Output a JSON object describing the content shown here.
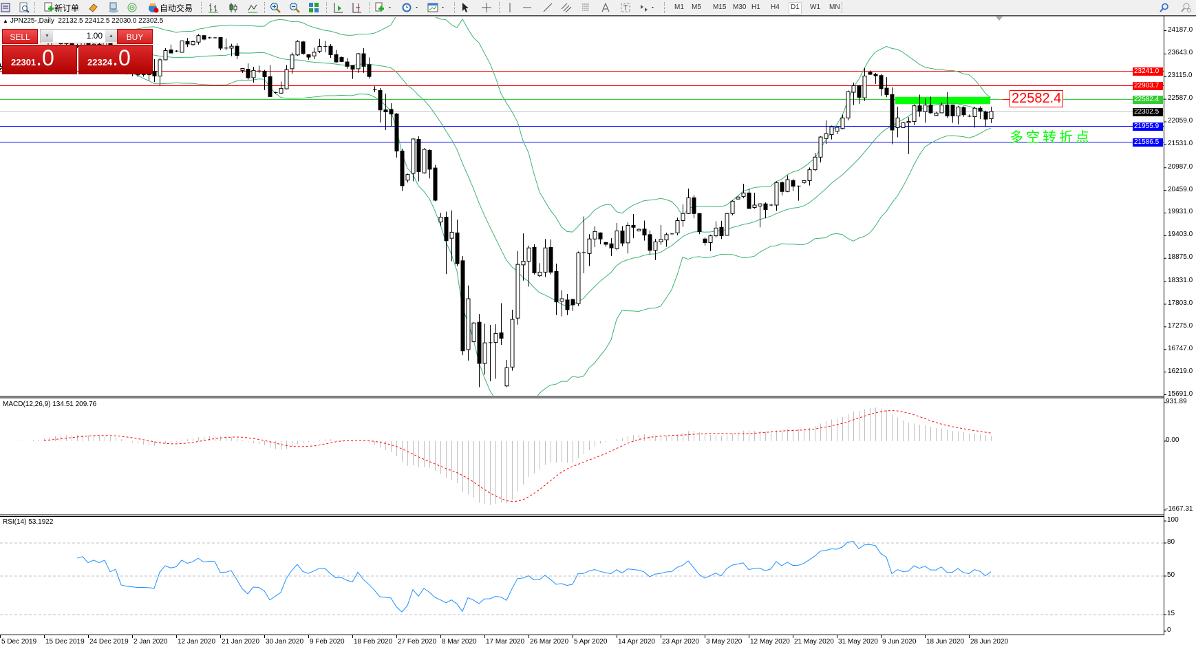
{
  "toolbar": {
    "new_order_label": "新订单",
    "auto_trading_label": "自动交易",
    "timeframes": [
      "M1",
      "M5",
      "M15",
      "M30",
      "H1",
      "H4",
      "D1",
      "W1",
      "MN"
    ],
    "active_timeframe": "D1"
  },
  "chart_header": {
    "symbol_period": "JPN225-,Daily",
    "ohlc": "22132.5 22412.5 22030.0 22302.5"
  },
  "trade_panel": {
    "sell_label": "SELL",
    "buy_label": "BUY",
    "lot": "1.00",
    "sell_price_main": "22301",
    "sell_price_frac": ".0",
    "buy_price_main": "22324",
    "buy_price_frac": ".0"
  },
  "annotations": {
    "price_box": "22582.4",
    "text": "多空转折点",
    "zone_color": "#00ff00"
  },
  "colors": {
    "bollinger": "#3cb371",
    "macd_hist": "#c0c0c0",
    "macd_signal": "#ff0000",
    "rsi": "#1e90ff",
    "bid_line": "#c0c0c0"
  },
  "chart_data": {
    "type": "candlestick",
    "symbol": "JPN225-",
    "period": "Daily",
    "price_axis_ticks": [
      "24187.0",
      "23643.0",
      "23115.0",
      "22587.0",
      "22059.0",
      "21531.0",
      "20987.0",
      "20459.0",
      "19931.0",
      "19403.0",
      "18875.0",
      "18331.0",
      "17803.0",
      "17275.0",
      "16747.0",
      "16219.0",
      "15691.0"
    ],
    "ylim": [
      15691.0,
      24187.0
    ],
    "x_tick_labels": [
      "5 Dec 2019",
      "15 Dec 2019",
      "24 Dec 2019",
      "2 Jan 2020",
      "12 Jan 2020",
      "21 Jan 2020",
      "30 Jan 2020",
      "9 Feb 2020",
      "18 Feb 2020",
      "27 Feb 2020",
      "8 Mar 2020",
      "17 Mar 2020",
      "26 Mar 2020",
      "5 Apr 2020",
      "14 Apr 2020",
      "23 Apr 2020",
      "3 May 2020",
      "12 May 2020",
      "21 May 2020",
      "31 May 2020",
      "9 Jun 2020",
      "18 Jun 2020",
      "28 Jun 2020"
    ],
    "horizontal_lines": [
      {
        "price": 23241.0,
        "label": "23241.0",
        "color": "#ff0000",
        "text": "#ffffff"
      },
      {
        "price": 22903.7,
        "label": "22903.7",
        "color": "#ff0000",
        "text": "#ffffff"
      },
      {
        "price": 22582.4,
        "label": "22582.4",
        "color": "#32cd32",
        "text": "#ffffff"
      },
      {
        "price": 22302.5,
        "label": "22302.5",
        "color": "#c0c0c0",
        "text": "#ffffff",
        "tag": "#000000"
      },
      {
        "price": 21955.9,
        "label": "21955.9",
        "color": "#0000ff",
        "text": "#ffffff"
      },
      {
        "price": 21586.5,
        "label": "21586.5",
        "color": "#0000ff",
        "text": "#ffffff"
      }
    ],
    "zone": {
      "from_price": 22641,
      "to_price": 22472
    },
    "bollinger": {
      "period": 20,
      "deviation": 2
    },
    "ohlc": [
      [
        23300,
        23420,
        23260,
        23350
      ],
      [
        23350,
        23460,
        23320,
        23400
      ],
      [
        23400,
        23430,
        23290,
        23330
      ],
      [
        23330,
        23470,
        23310,
        23420
      ],
      [
        23420,
        23480,
        23360,
        23410
      ],
      [
        23410,
        23450,
        23330,
        23390
      ],
      [
        23390,
        23690,
        23370,
        23640
      ],
      [
        23640,
        23670,
        23440,
        23480
      ],
      [
        23480,
        23800,
        23460,
        23760
      ],
      [
        23760,
        23980,
        23730,
        23930
      ],
      [
        23930,
        24060,
        23900,
        24000
      ],
      [
        24000,
        24030,
        23840,
        23880
      ],
      [
        23880,
        23990,
        23850,
        23950
      ],
      [
        23950,
        23970,
        23790,
        23820
      ],
      [
        23820,
        23880,
        23780,
        23840
      ],
      [
        23840,
        23940,
        23810,
        23900
      ],
      [
        23900,
        23920,
        23740,
        23780
      ],
      [
        23780,
        23900,
        23760,
        23870
      ],
      [
        23870,
        23900,
        23790,
        23820
      ],
      [
        23820,
        23940,
        23800,
        23900
      ],
      [
        23900,
        23920,
        23620,
        23650
      ],
      [
        23650,
        23760,
        23610,
        23720
      ],
      [
        23720,
        23730,
        23210,
        23250
      ],
      [
        23250,
        23330,
        23160,
        23200
      ],
      [
        23200,
        23260,
        23120,
        23180
      ],
      [
        23150,
        23201,
        23100,
        23156
      ],
      [
        23156,
        23200,
        23110,
        23160
      ],
      [
        23160,
        23241,
        23015,
        23150
      ],
      [
        23241,
        23523,
        22987,
        23128
      ],
      [
        23128,
        23552,
        22902,
        23506
      ],
      [
        23506,
        23778,
        23495,
        23721
      ],
      [
        23738,
        23862,
        23653,
        23665
      ],
      [
        23710,
        23730,
        23690,
        23705
      ],
      [
        23681,
        23964,
        23676,
        23947
      ],
      [
        23936,
        24015,
        23806,
        23874
      ],
      [
        23862,
        23958,
        23834,
        23930
      ],
      [
        23919,
        24105,
        23862,
        24071
      ],
      [
        24071,
        24088,
        23958,
        23987
      ],
      [
        24020,
        24040,
        24000,
        24020
      ],
      [
        24020,
        24040,
        24000,
        24015
      ],
      [
        24026,
        24032,
        23732,
        23778
      ],
      [
        23778,
        24004,
        23732,
        23780
      ],
      [
        23778,
        23879,
        23591,
        23823
      ],
      [
        23823,
        23891,
        23523,
        23608
      ],
      [
        23258,
        23314,
        23201,
        23303
      ],
      [
        23286,
        23422,
        23043,
        23088
      ],
      [
        23088,
        23343,
        22975,
        23258
      ],
      [
        23241,
        23371,
        23201,
        23245
      ],
      [
        23241,
        23269,
        22800,
        23111
      ],
      [
        23111,
        23382,
        22640,
        22648
      ],
      [
        22738,
        22760,
        22715,
        22740
      ],
      [
        22728,
        22998,
        22715,
        22840
      ],
      [
        22829,
        23382,
        22817,
        23280
      ],
      [
        23298,
        23676,
        23184,
        23620
      ],
      [
        23620,
        23964,
        23597,
        23936
      ],
      [
        23925,
        23947,
        23625,
        23654
      ],
      [
        23625,
        23636,
        23507,
        23568
      ],
      [
        23597,
        23789,
        23523,
        23682
      ],
      [
        23704,
        23992,
        23665,
        23817
      ],
      [
        23817,
        23947,
        23681,
        23820
      ],
      [
        23823,
        23874,
        23552,
        23625
      ],
      [
        23625,
        23738,
        23439,
        23456
      ],
      [
        23563,
        23580,
        23456,
        23467
      ],
      [
        23456,
        23552,
        23297,
        23354
      ],
      [
        23371,
        23382,
        23060,
        23286
      ],
      [
        23297,
        23665,
        23201,
        23648
      ],
      [
        23648,
        23778,
        23201,
        23354
      ],
      [
        23393,
        23563,
        23071,
        23117
      ],
      [
        22806,
        22890,
        22749,
        22800
      ],
      [
        22789,
        22845,
        22043,
        22337
      ],
      [
        22337,
        22715,
        21868,
        22292
      ],
      [
        22348,
        22495,
        21953,
        22241
      ],
      [
        22241,
        22264,
        21224,
        21377
      ],
      [
        21377,
        21433,
        20444,
        20568
      ],
      [
        20698,
        20851,
        20642,
        20828
      ],
      [
        20857,
        21670,
        20670,
        21659
      ],
      [
        21648,
        21721,
        20670,
        20896
      ],
      [
        20868,
        21444,
        20851,
        21416
      ],
      [
        21393,
        21416,
        20738,
        20953
      ],
      [
        20981,
        21054,
        20207,
        20229
      ],
      [
        19721,
        19935,
        19625,
        19834
      ],
      [
        19834,
        19964,
        18506,
        19286
      ],
      [
        19342,
        19992,
        18805,
        19483
      ],
      [
        19467,
        19777,
        18692,
        18749
      ],
      [
        18817,
        18930,
        16613,
        16715
      ],
      [
        16743,
        18240,
        16489,
        17930
      ],
      [
        16930,
        17382,
        16913,
        17365
      ],
      [
        17382,
        17574,
        15867,
        16421
      ],
      [
        16421,
        17348,
        16161,
        16901
      ],
      [
        16901,
        17320,
        16009,
        16905
      ],
      [
        16913,
        17336,
        16065,
        17122
      ],
      [
        17133,
        17828,
        16856,
        17009
      ],
      [
        15896,
        16501,
        15867,
        16320
      ],
      [
        16336,
        17675,
        16252,
        17449
      ],
      [
        17478,
        19043,
        17325,
        18732
      ],
      [
        18721,
        19455,
        18353,
        18805
      ],
      [
        18805,
        19173,
        18212,
        19116
      ],
      [
        19128,
        19201,
        18495,
        18534
      ],
      [
        18467,
        18760,
        18438,
        18551
      ],
      [
        18551,
        19325,
        18438,
        19116
      ],
      [
        19128,
        19314,
        18495,
        18551
      ],
      [
        18568,
        18749,
        17551,
        17856
      ],
      [
        17873,
        18127,
        17517,
        17930
      ],
      [
        17902,
        18043,
        17551,
        17675
      ],
      [
        17913,
        17930,
        17647,
        17788
      ],
      [
        17817,
        19032,
        17760,
        19003
      ],
      [
        19003,
        19851,
        18523,
        19010
      ],
      [
        18986,
        19438,
        18692,
        19325
      ],
      [
        19325,
        19619,
        19133,
        19500
      ],
      [
        19467,
        19480,
        19201,
        19325
      ],
      [
        19241,
        19258,
        19144,
        19201
      ],
      [
        19212,
        19342,
        18930,
        19116
      ],
      [
        19099,
        19698,
        19060,
        19512
      ],
      [
        19512,
        19625,
        19156,
        19229
      ],
      [
        19235,
        19710,
        18986,
        19642
      ],
      [
        19642,
        19907,
        19342,
        19597
      ],
      [
        19512,
        19569,
        19500,
        19551
      ],
      [
        19557,
        19755,
        19286,
        19416
      ],
      [
        19427,
        19523,
        18964,
        19060
      ],
      [
        19060,
        19325,
        18834,
        19257
      ],
      [
        19257,
        19653,
        19190,
        19314
      ],
      [
        19302,
        19472,
        19144,
        19427
      ],
      [
        19427,
        19460,
        19420,
        19444
      ],
      [
        19467,
        19823,
        19410,
        19755
      ],
      [
        19755,
        20133,
        19608,
        19919
      ],
      [
        19919,
        20501,
        19907,
        20286
      ],
      [
        20286,
        20348,
        19806,
        19919
      ],
      [
        19919,
        19930,
        19438,
        19495
      ],
      [
        19325,
        19359,
        19173,
        19241
      ],
      [
        19241,
        19427,
        19043,
        19399
      ],
      [
        19399,
        19738,
        19359,
        19580
      ],
      [
        19597,
        19749,
        19325,
        19399
      ],
      [
        19410,
        19936,
        19399,
        19919
      ],
      [
        19919,
        20229,
        19879,
        20207
      ],
      [
        20257,
        20342,
        20246,
        20303
      ],
      [
        20314,
        20614,
        20275,
        20399
      ],
      [
        20399,
        20501,
        20030,
        20037
      ],
      [
        20060,
        20404,
        20031,
        20116
      ],
      [
        20094,
        20161,
        19596,
        20144
      ],
      [
        20144,
        20178,
        19806,
        20009
      ],
      [
        20110,
        20150,
        20090,
        20116
      ],
      [
        20116,
        20670,
        19981,
        20642
      ],
      [
        20642,
        20670,
        20342,
        20433
      ],
      [
        20433,
        20811,
        20416,
        20709
      ],
      [
        20687,
        20726,
        20444,
        20557
      ],
      [
        20557,
        20570,
        20218,
        20560
      ],
      [
        20642,
        20690,
        20613,
        20687
      ],
      [
        20687,
        20992,
        20574,
        20941
      ],
      [
        20941,
        21337,
        20907,
        21235
      ],
      [
        21235,
        21727,
        21111,
        21704
      ],
      [
        21670,
        22094,
        21546,
        21783
      ],
      [
        21760,
        21970,
        21648,
        21941
      ],
      [
        21840,
        21941,
        21772,
        21930
      ],
      [
        21902,
        22224,
        21885,
        22150
      ],
      [
        22150,
        22789,
        22094,
        22761
      ],
      [
        22749,
        22975,
        22450,
        22902
      ],
      [
        22902,
        22919,
        22478,
        22631
      ],
      [
        22619,
        23314,
        22546,
        23128
      ],
      [
        23213,
        23258,
        23156,
        23167
      ],
      [
        23167,
        23201,
        22947,
        23133
      ],
      [
        23139,
        23173,
        22659,
        22834
      ],
      [
        22845,
        23100,
        22636,
        22693
      ],
      [
        22693,
        22862,
        21535,
        21868
      ],
      [
        21924,
        22410,
        21698,
        22150
      ],
      [
        21924,
        22054,
        21913,
        22037
      ],
      [
        22040,
        22167,
        21308,
        22066
      ],
      [
        22066,
        22467,
        21981,
        22433
      ],
      [
        22433,
        22693,
        22178,
        22309
      ],
      [
        22292,
        22602,
        22037,
        22450
      ],
      [
        22450,
        22648,
        22252,
        22269
      ],
      [
        22207,
        22292,
        22196,
        22263
      ],
      [
        22269,
        22506,
        22263,
        22450
      ],
      [
        22450,
        22749,
        22156,
        22196
      ],
      [
        22450,
        22460,
        22037,
        22196
      ],
      [
        22196,
        22433,
        21998,
        22405
      ],
      [
        22393,
        22421,
        22178,
        22224
      ],
      [
        22190,
        22230,
        22170,
        22179
      ],
      [
        22179,
        22410,
        21924,
        22376
      ],
      [
        22376,
        22421,
        22122,
        22309
      ],
      [
        22292,
        22320,
        21941,
        22122
      ],
      [
        22132.5,
        22412.5,
        22030.0,
        22302.5
      ]
    ],
    "macd": {
      "header": "MACD(12,26,9) 134.51 209.76",
      "params": [
        12,
        26,
        9
      ],
      "ticks": [
        "931.89",
        "0.00",
        "-1667.31"
      ],
      "ylim": [
        -1667.31,
        931.89
      ]
    },
    "rsi": {
      "header": "RSI(14) 53.1922",
      "period": 14,
      "ticks": [
        "100",
        "80",
        "50",
        "15",
        "0"
      ],
      "levels": [
        80,
        50,
        15
      ],
      "ylim": [
        0,
        100
      ]
    }
  }
}
